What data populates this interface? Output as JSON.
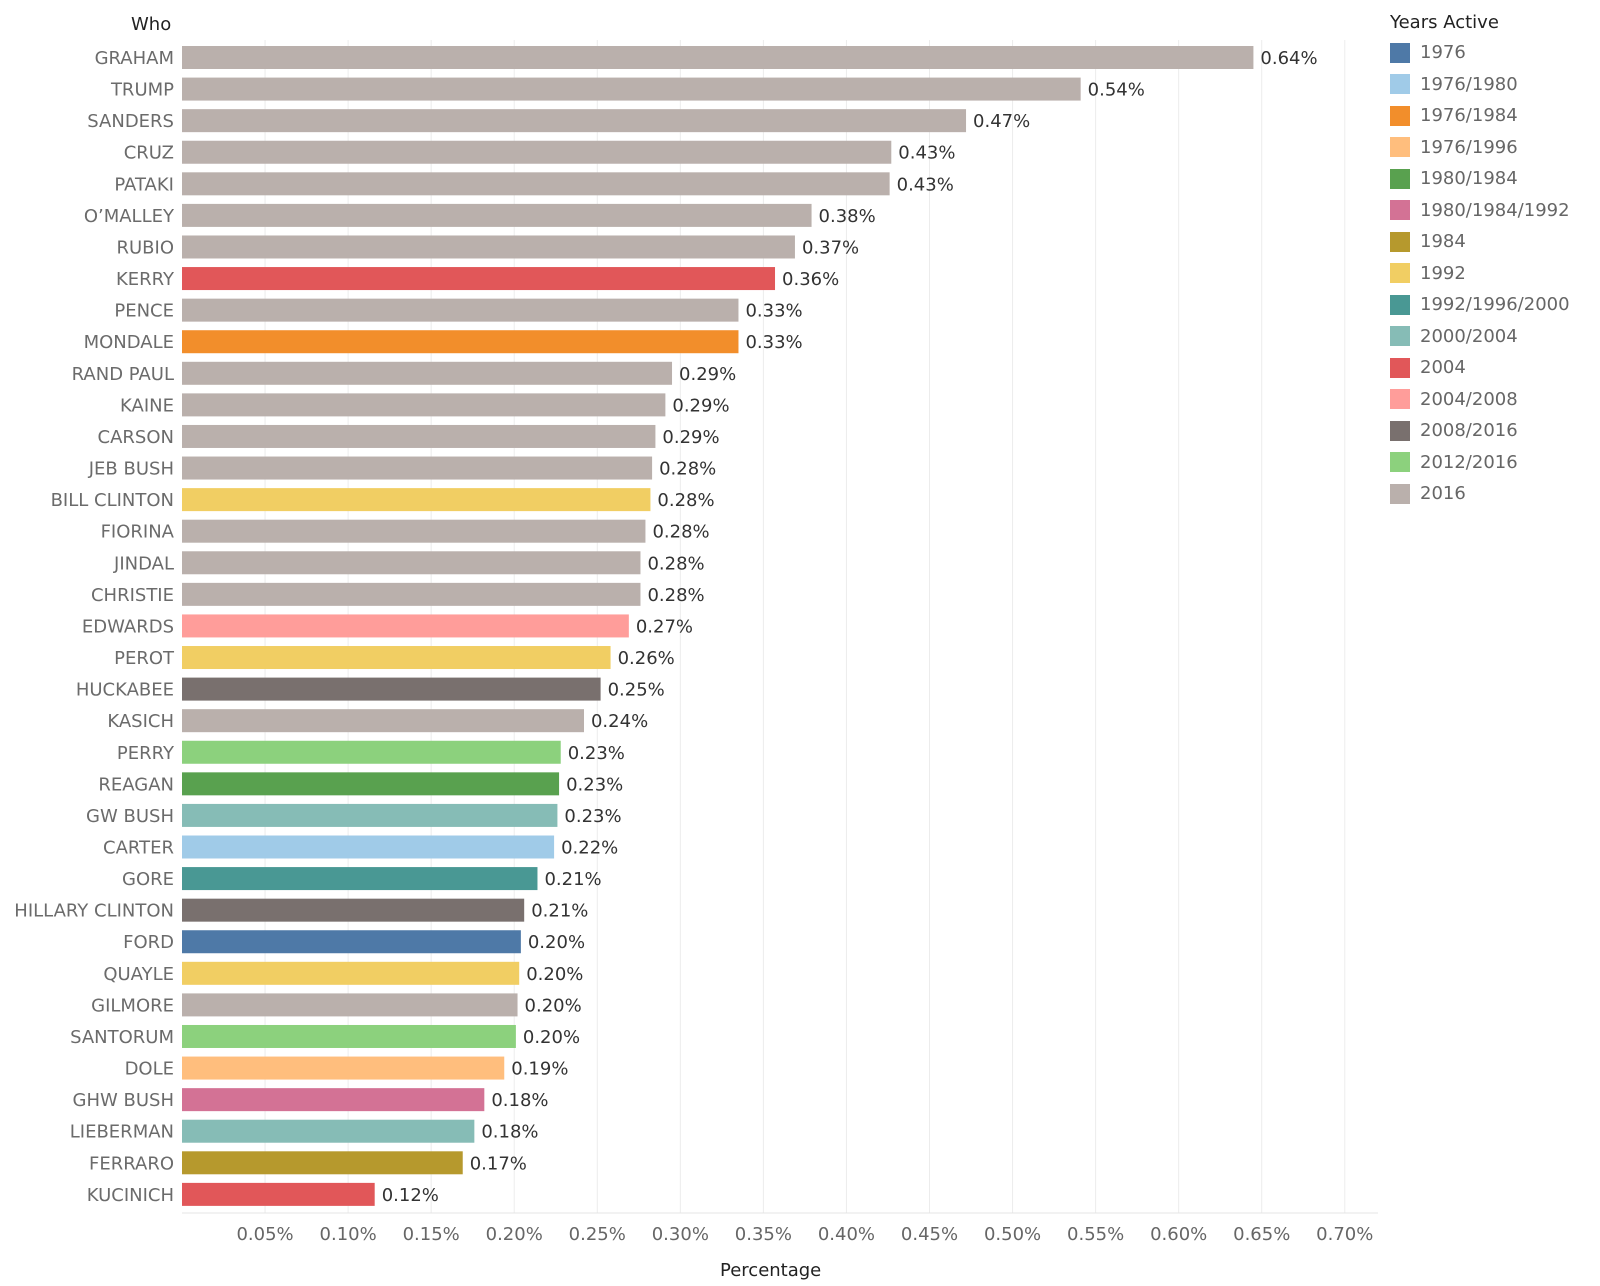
{
  "chart_data": {
    "type": "bar",
    "orientation": "horizontal",
    "row_header": "Who",
    "xlabel": "Percentage",
    "xlim": [
      0,
      0.72
    ],
    "x_ticks": [
      "0.05%",
      "0.10%",
      "0.15%",
      "0.20%",
      "0.25%",
      "0.30%",
      "0.35%",
      "0.40%",
      "0.45%",
      "0.50%",
      "0.55%",
      "0.60%",
      "0.65%",
      "0.70%"
    ],
    "grid": "vertical",
    "legend": {
      "title": "Years Active",
      "placement": "right",
      "entries": [
        {
          "label": "1976",
          "color": "#4e79a7"
        },
        {
          "label": "1976/1980",
          "color": "#a0cbe8"
        },
        {
          "label": "1976/1984",
          "color": "#f28e2b"
        },
        {
          "label": "1976/1996",
          "color": "#ffbe7d"
        },
        {
          "label": "1980/1984",
          "color": "#59a14f"
        },
        {
          "label": "1980/1984/1992",
          "color": "#d37295"
        },
        {
          "label": "1984",
          "color": "#b6992d"
        },
        {
          "label": "1992",
          "color": "#f1ce63"
        },
        {
          "label": "1992/1996/2000",
          "color": "#499894"
        },
        {
          "label": "2000/2004",
          "color": "#86bcb6"
        },
        {
          "label": "2004",
          "color": "#e15759"
        },
        {
          "label": "2004/2008",
          "color": "#ff9d9a"
        },
        {
          "label": "2008/2016",
          "color": "#79706e"
        },
        {
          "label": "2012/2016",
          "color": "#8cd17d"
        },
        {
          "label": "2016",
          "color": "#bab0ac"
        }
      ]
    },
    "categories": [
      "GRAHAM",
      "TRUMP",
      "SANDERS",
      "CRUZ",
      "PATAKI",
      "O’MALLEY",
      "RUBIO",
      "KERRY",
      "PENCE",
      "MONDALE",
      "RAND PAUL",
      "KAINE",
      "CARSON",
      "JEB BUSH",
      "BILL CLINTON",
      "FIORINA",
      "JINDAL",
      "CHRISTIE",
      "EDWARDS",
      "PEROT",
      "HUCKABEE",
      "KASICH",
      "PERRY",
      "REAGAN",
      "GW BUSH",
      "CARTER",
      "GORE",
      "HILLARY CLINTON",
      "FORD",
      "QUAYLE",
      "GILMORE",
      "SANTORUM",
      "DOLE",
      "GHW BUSH",
      "LIEBERMAN",
      "FERRARO",
      "KUCINICH"
    ],
    "values": [
      0.645,
      0.541,
      0.472,
      0.427,
      0.426,
      0.379,
      0.369,
      0.357,
      0.335,
      0.335,
      0.295,
      0.291,
      0.285,
      0.283,
      0.282,
      0.279,
      0.276,
      0.276,
      0.269,
      0.258,
      0.252,
      0.242,
      0.228,
      0.227,
      0.226,
      0.224,
      0.214,
      0.206,
      0.204,
      0.203,
      0.202,
      0.201,
      0.194,
      0.182,
      0.176,
      0.169,
      0.116
    ],
    "data_labels": [
      "0.64%",
      "0.54%",
      "0.47%",
      "0.43%",
      "0.43%",
      "0.38%",
      "0.37%",
      "0.36%",
      "0.33%",
      "0.33%",
      "0.29%",
      "0.29%",
      "0.29%",
      "0.28%",
      "0.28%",
      "0.28%",
      "0.28%",
      "0.28%",
      "0.27%",
      "0.26%",
      "0.25%",
      "0.24%",
      "0.23%",
      "0.23%",
      "0.23%",
      "0.22%",
      "0.21%",
      "0.21%",
      "0.20%",
      "0.20%",
      "0.20%",
      "0.20%",
      "0.19%",
      "0.18%",
      "0.18%",
      "0.17%",
      "0.12%"
    ],
    "years_active": [
      "2016",
      "2016",
      "2016",
      "2016",
      "2016",
      "2016",
      "2016",
      "2004",
      "2016",
      "1976/1984",
      "2016",
      "2016",
      "2016",
      "2016",
      "1992",
      "2016",
      "2016",
      "2016",
      "2004/2008",
      "1992",
      "2008/2016",
      "2016",
      "2012/2016",
      "1980/1984",
      "2000/2004",
      "1976/1980",
      "1992/1996/2000",
      "2008/2016",
      "1976",
      "1992",
      "2016",
      "2012/2016",
      "1976/1996",
      "1980/1984/1992",
      "2000/2004",
      "1984",
      "2004"
    ]
  }
}
